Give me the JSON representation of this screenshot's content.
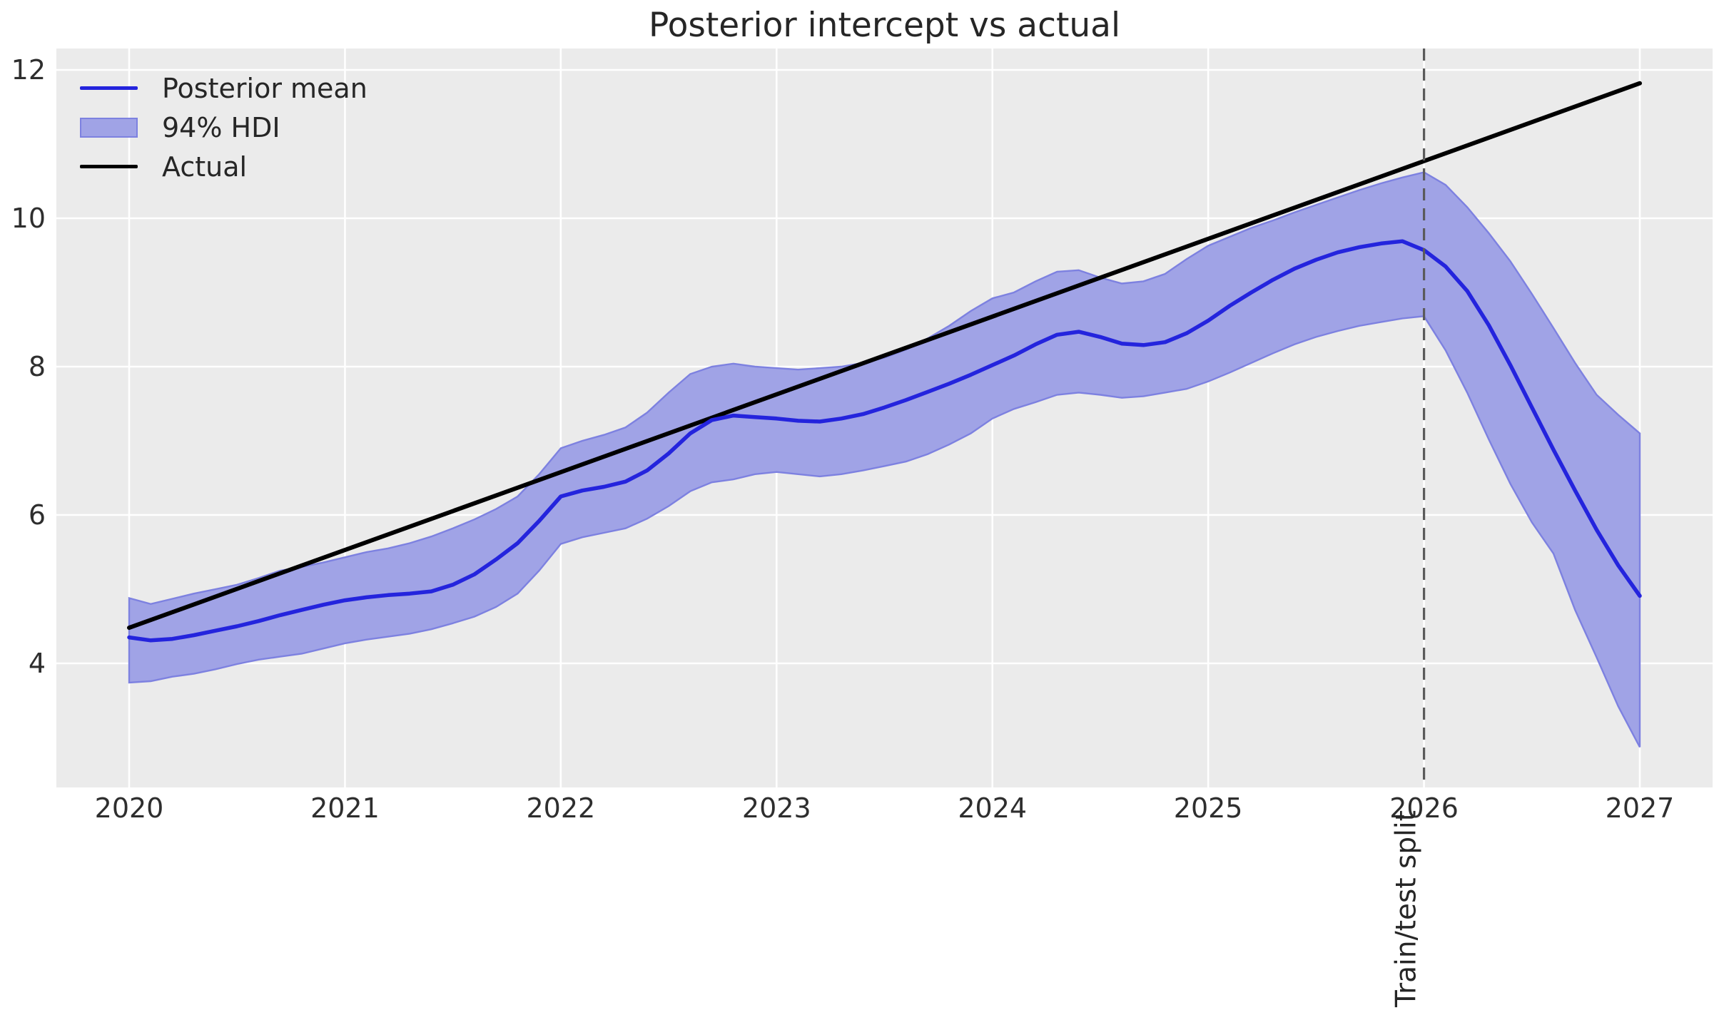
{
  "figure": {
    "title": "Posterior intercept vs actual"
  },
  "legend": {
    "items": [
      {
        "label": "Posterior mean",
        "swatch": "line",
        "color": "#2424dd"
      },
      {
        "label": "94% HDI",
        "swatch": "patch",
        "color": "#a0a3e6",
        "edge": "#7d81e0"
      },
      {
        "label": "Actual",
        "swatch": "line",
        "color": "#000000"
      }
    ]
  },
  "chart_data": {
    "type": "line",
    "title": "Posterior intercept vs actual",
    "xlabel": "",
    "ylabel": "",
    "x_ticks": [
      2020,
      2021,
      2022,
      2023,
      2024,
      2025,
      2026,
      2027
    ],
    "y_ticks": [
      4,
      6,
      8,
      10,
      12
    ],
    "xlim": [
      2019.66,
      2027.35
    ],
    "ylim": [
      2.33,
      12.29
    ],
    "grid": true,
    "plot_background": "#ebebeb",
    "gridline_color": "#ffffff",
    "tick_color": "#2e2e2e",
    "legend_position": "upper left",
    "split_line": {
      "x": 2026,
      "label": "Train/test split",
      "style": "dashed",
      "color": "#5a5a5a"
    },
    "x": [
      2020.0,
      2020.1,
      2020.2,
      2020.3,
      2020.4,
      2020.5,
      2020.6,
      2020.7,
      2020.8,
      2020.9,
      2021.0,
      2021.1,
      2021.2,
      2021.3,
      2021.4,
      2021.5,
      2021.6,
      2021.7,
      2021.8,
      2021.9,
      2022.0,
      2022.1,
      2022.2,
      2022.3,
      2022.4,
      2022.5,
      2022.6,
      2022.7,
      2022.8,
      2022.9,
      2023.0,
      2023.1,
      2023.2,
      2023.3,
      2023.4,
      2023.5,
      2023.6,
      2023.7,
      2023.8,
      2023.9,
      2024.0,
      2024.1,
      2024.2,
      2024.3,
      2024.4,
      2024.5,
      2024.6,
      2024.7,
      2024.8,
      2024.9,
      2025.0,
      2025.1,
      2025.2,
      2025.3,
      2025.4,
      2025.5,
      2025.6,
      2025.7,
      2025.8,
      2025.9,
      2026.0,
      2026.1,
      2026.2,
      2026.3,
      2026.4,
      2026.5,
      2026.6,
      2026.7,
      2026.8,
      2026.9,
      2027.0
    ],
    "series": [
      {
        "name": "Posterior mean",
        "type": "line",
        "color": "#2424dd",
        "y": [
          4.35,
          4.31,
          4.33,
          4.38,
          4.44,
          4.5,
          4.57,
          4.65,
          4.72,
          4.79,
          4.85,
          4.89,
          4.92,
          4.94,
          4.97,
          5.06,
          5.2,
          5.4,
          5.62,
          5.92,
          6.25,
          6.33,
          6.38,
          6.45,
          6.6,
          6.83,
          7.1,
          7.28,
          7.34,
          7.32,
          7.3,
          7.27,
          7.26,
          7.3,
          7.36,
          7.45,
          7.55,
          7.66,
          7.77,
          7.89,
          8.02,
          8.15,
          8.3,
          8.43,
          8.47,
          8.4,
          8.31,
          8.29,
          8.33,
          8.45,
          8.62,
          8.82,
          9.0,
          9.17,
          9.32,
          9.44,
          9.54,
          9.61,
          9.66,
          9.69,
          9.57,
          9.35,
          9.02,
          8.56,
          8.02,
          7.45,
          6.88,
          6.33,
          5.8,
          5.32,
          4.91
        ]
      },
      {
        "name": "94% HDI",
        "type": "band",
        "fill": "#a0a3e6",
        "edge": "#7d81e0",
        "hi": [
          4.88,
          4.8,
          4.87,
          4.94,
          5.0,
          5.06,
          5.15,
          5.25,
          5.3,
          5.36,
          5.43,
          5.5,
          5.55,
          5.62,
          5.71,
          5.82,
          5.94,
          6.08,
          6.25,
          6.55,
          6.9,
          7.0,
          7.08,
          7.18,
          7.38,
          7.65,
          7.9,
          8.0,
          8.04,
          8.0,
          7.98,
          7.96,
          7.98,
          8.0,
          8.05,
          8.12,
          8.23,
          8.38,
          8.55,
          8.75,
          8.92,
          9.0,
          9.15,
          9.28,
          9.3,
          9.2,
          9.12,
          9.15,
          9.25,
          9.45,
          9.63,
          9.75,
          9.87,
          9.97,
          10.08,
          10.18,
          10.28,
          10.38,
          10.47,
          10.55,
          10.62,
          10.45,
          10.15,
          9.8,
          9.42,
          8.98,
          8.52,
          8.05,
          7.62,
          7.35,
          7.1
        ],
        "lo": [
          3.74,
          3.76,
          3.82,
          3.86,
          3.92,
          3.99,
          4.05,
          4.09,
          4.13,
          4.2,
          4.27,
          4.32,
          4.36,
          4.4,
          4.46,
          4.54,
          4.63,
          4.76,
          4.94,
          5.25,
          5.61,
          5.7,
          5.76,
          5.82,
          5.95,
          6.12,
          6.32,
          6.44,
          6.48,
          6.55,
          6.58,
          6.55,
          6.52,
          6.55,
          6.6,
          6.66,
          6.72,
          6.82,
          6.95,
          7.1,
          7.3,
          7.43,
          7.52,
          7.62,
          7.65,
          7.62,
          7.58,
          7.6,
          7.65,
          7.7,
          7.8,
          7.92,
          8.05,
          8.18,
          8.3,
          8.4,
          8.48,
          8.55,
          8.6,
          8.65,
          8.68,
          8.22,
          7.65,
          7.02,
          6.42,
          5.9,
          5.48,
          4.72,
          4.08,
          3.42,
          2.87
        ]
      },
      {
        "name": "Actual",
        "type": "line",
        "color": "#000000",
        "x": [
          2020,
          2027
        ],
        "y": [
          4.48,
          11.82
        ]
      }
    ]
  }
}
